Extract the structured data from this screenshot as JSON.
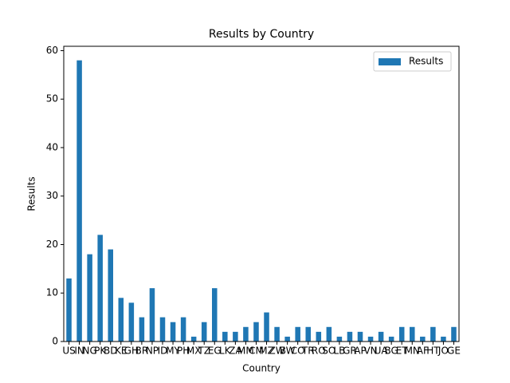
{
  "chart_data": {
    "type": "bar",
    "title": "Results by Country",
    "xlabel": "Country",
    "ylabel": "Results",
    "categories": [
      "US",
      "IN",
      "NG",
      "PK",
      "BD",
      "KE",
      "GH",
      "BR",
      "NP",
      "ID",
      "MY",
      "PH",
      "MX",
      "TZ",
      "EG",
      "LK",
      "ZA",
      "MM",
      "CM",
      "MZ",
      "ZW",
      "BW",
      "CO",
      "TR",
      "RO",
      "SO",
      "LB",
      "GR",
      "AP",
      "VN",
      "UA",
      "BG",
      "ET",
      "MN",
      "AF",
      "HT",
      "JO",
      "GE"
    ],
    "series": [
      {
        "name": "Results",
        "color": "#1f77b4",
        "values": [
          13,
          58,
          18,
          22,
          19,
          9,
          8,
          5,
          11,
          5,
          4,
          5,
          1,
          4,
          11,
          2,
          2,
          3,
          4,
          6,
          3,
          1,
          3,
          3,
          2,
          3,
          1,
          2,
          2,
          1,
          2,
          1,
          3,
          3,
          1,
          3,
          1,
          3
        ]
      }
    ],
    "ylim": [
      0,
      60.9
    ],
    "yticks": [
      0,
      10,
      20,
      30,
      40,
      50,
      60
    ],
    "legend": "upper right"
  }
}
